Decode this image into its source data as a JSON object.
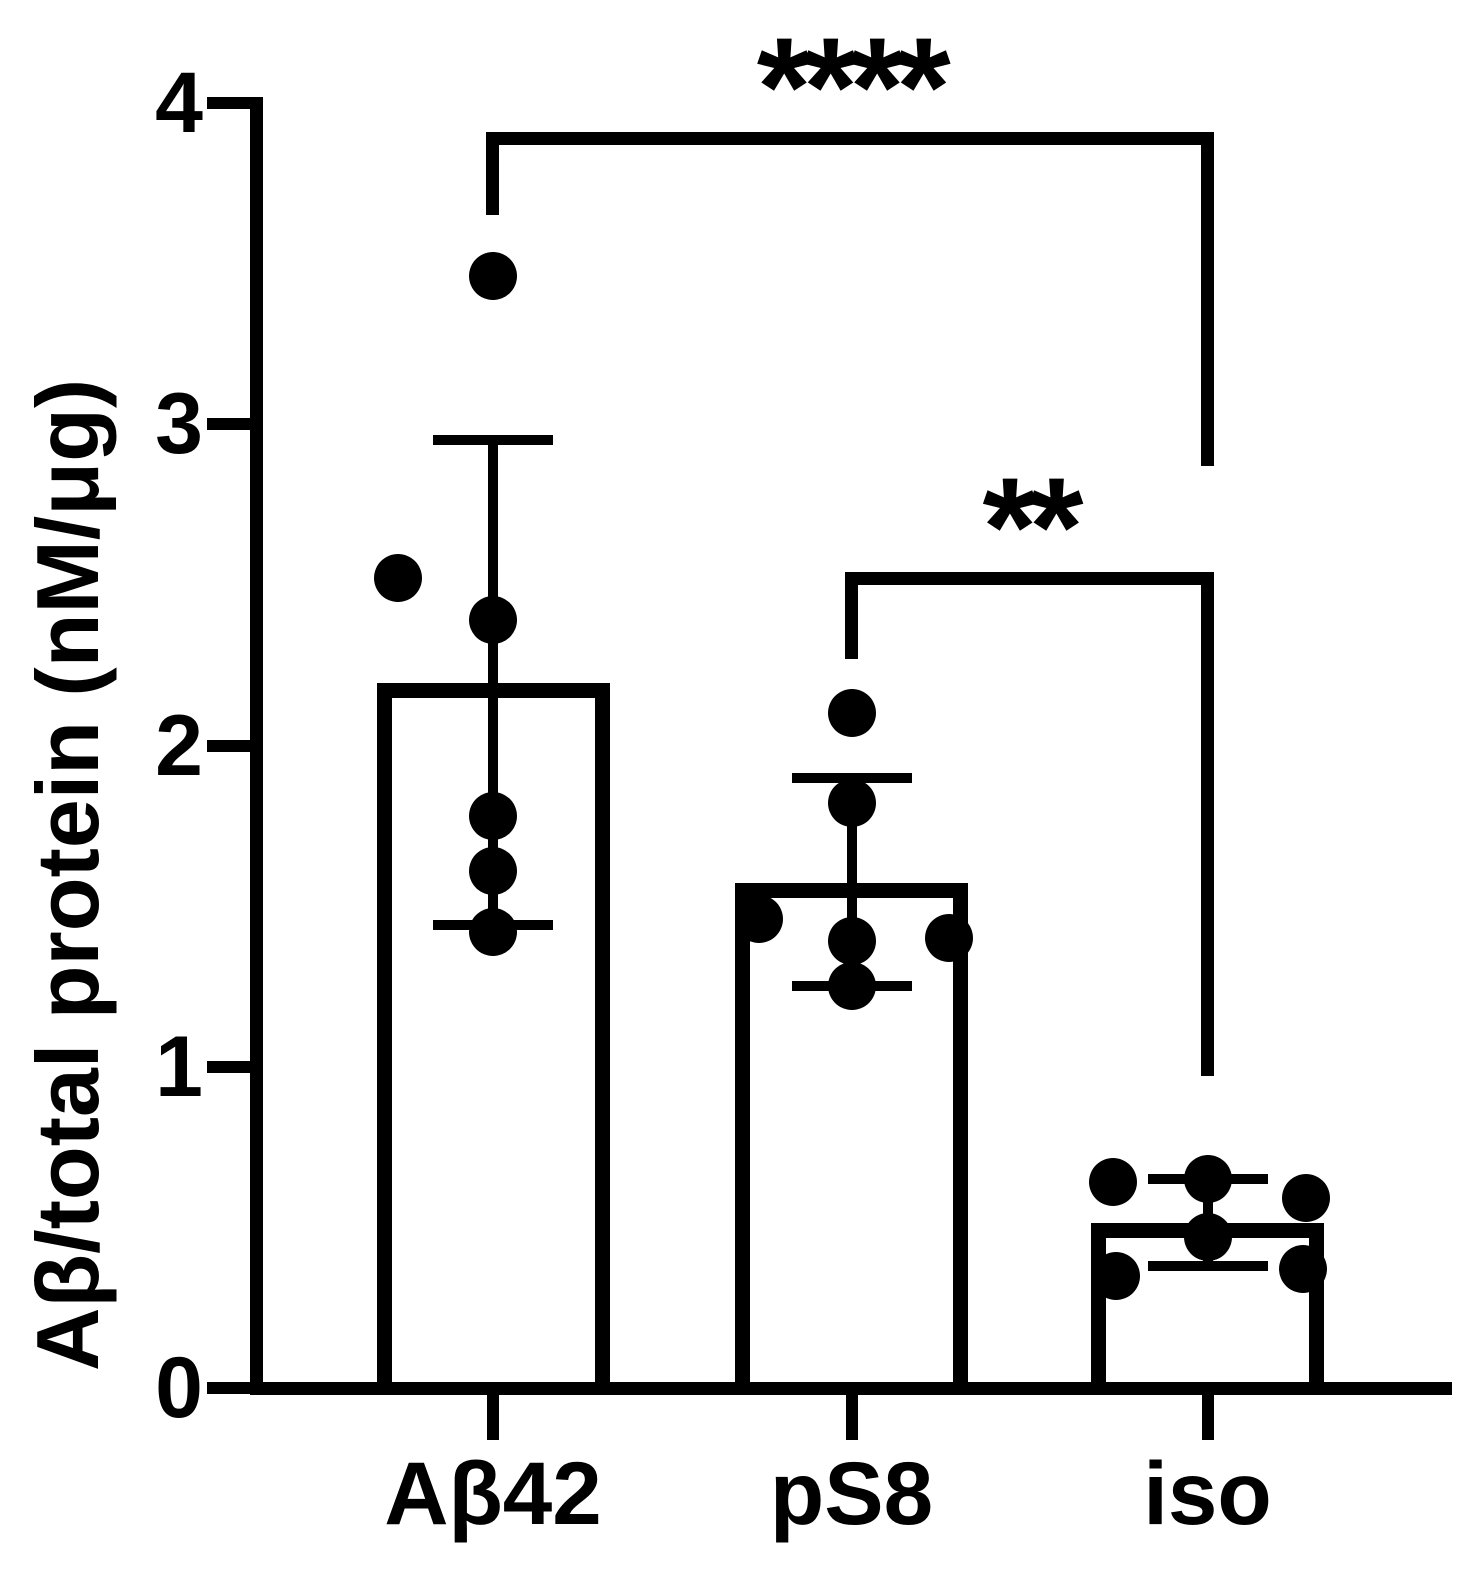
{
  "colors": {
    "foreground": "#000000",
    "background": "#ffffff",
    "bar_fill": "#ffffff",
    "bar_border": "#000000"
  },
  "chart_data": {
    "type": "bar",
    "title": "",
    "xlabel": "",
    "ylabel": "Aβ/total protein (nM/μg)",
    "ylim": [
      0,
      4
    ],
    "yticks": [
      0,
      1,
      2,
      3,
      4
    ],
    "grid": false,
    "legend": false,
    "categories": [
      "Aβ42",
      "pS8",
      "iso"
    ],
    "bars": [
      {
        "label": "Aβ42",
        "mean": 2.17,
        "err_high": 2.95,
        "err_low": 1.44,
        "points": [
          {
            "dx": 0,
            "v": 3.46
          },
          {
            "dx": -95,
            "v": 2.52
          },
          {
            "dx": 0,
            "v": 2.39
          },
          {
            "dx": 0,
            "v": 1.78
          },
          {
            "dx": 0,
            "v": 1.61
          },
          {
            "dx": 0,
            "v": 1.42
          }
        ]
      },
      {
        "label": "pS8",
        "mean": 1.55,
        "err_high": 1.9,
        "err_low": 1.25,
        "points": [
          {
            "dx": 0,
            "v": 2.1
          },
          {
            "dx": 0,
            "v": 1.82
          },
          {
            "dx": -93,
            "v": 1.46
          },
          {
            "dx": 0,
            "v": 1.39
          },
          {
            "dx": 97,
            "v": 1.4
          },
          {
            "dx": 0,
            "v": 1.25
          }
        ]
      },
      {
        "label": "iso",
        "mean": 0.49,
        "err_high": 0.65,
        "err_low": 0.38,
        "points": [
          {
            "dx": -95,
            "v": 0.64
          },
          {
            "dx": 0,
            "v": 0.65
          },
          {
            "dx": 98,
            "v": 0.59
          },
          {
            "dx": 0,
            "v": 0.47
          },
          {
            "dx": -92,
            "v": 0.35
          },
          {
            "dx": 95,
            "v": 0.37
          }
        ]
      }
    ],
    "significance": [
      {
        "label": "****",
        "from": 0,
        "to": 2,
        "top": 3.89,
        "left_drop_to": 3.65,
        "right_drop_to": 2.87
      },
      {
        "label": "**",
        "from": 1,
        "to": 2,
        "top": 2.52,
        "left_drop_to": 2.27,
        "right_drop_to": 0.97
      }
    ]
  }
}
